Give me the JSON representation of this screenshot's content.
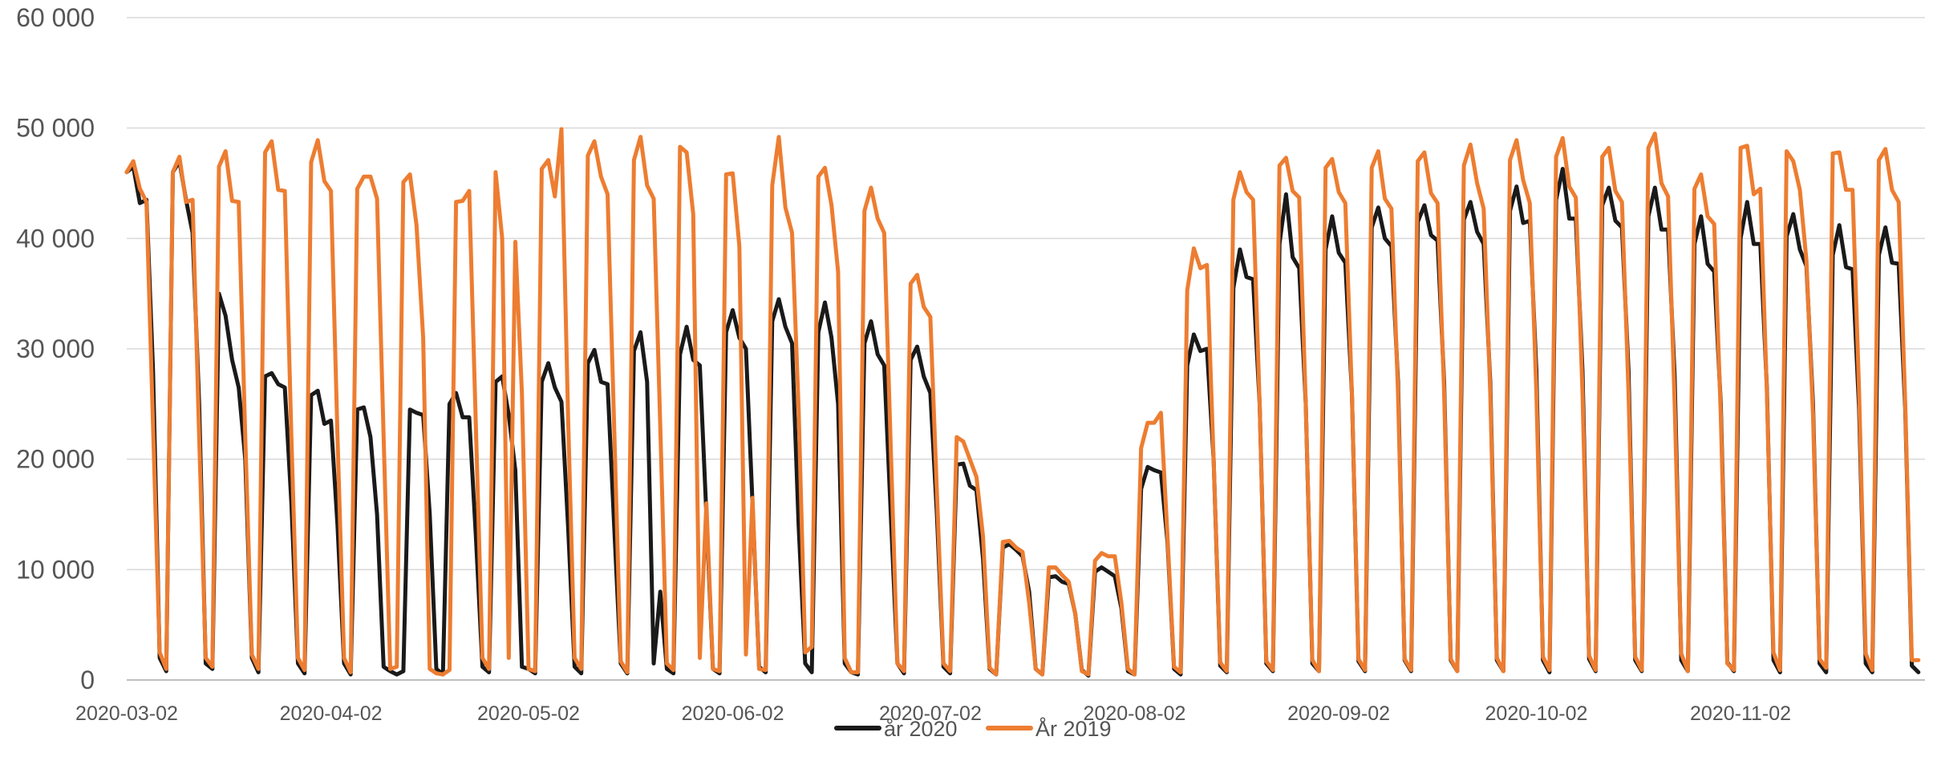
{
  "chart_data": {
    "type": "line",
    "title": "",
    "xlabel": "",
    "ylabel": "",
    "x_range": [
      "2020-03-02",
      "2020-11-30"
    ],
    "ylim": [
      0,
      60000
    ],
    "y_ticks": [
      "0",
      "10 000",
      "20 000",
      "30 000",
      "40 000",
      "50 000",
      "60 000"
    ],
    "x_ticks": [
      "2020-03-02",
      "2020-04-02",
      "2020-05-02",
      "2020-06-02",
      "2020-07-02",
      "2020-08-02",
      "2020-09-02",
      "2020-10-02",
      "2020-11-02"
    ],
    "grid": "horizontal",
    "legend_position": "bottom",
    "series": [
      {
        "name": "år 2020",
        "color": "#1a1a1a",
        "values": [
          46000,
          46500,
          43200,
          43500,
          28000,
          2000,
          800,
          46000,
          47000,
          43500,
          40500,
          25000,
          1500,
          1000,
          35000,
          33000,
          29000,
          26500,
          20000,
          2000,
          700,
          27500,
          27800,
          26800,
          26500,
          16000,
          1500,
          600,
          25800,
          26200,
          23200,
          23500,
          14000,
          1500,
          500,
          24500,
          24700,
          22000,
          15000,
          1200,
          800,
          500,
          800,
          24500,
          24200,
          24000,
          15000,
          1000,
          500,
          25000,
          26000,
          23800,
          23800,
          13000,
          1200,
          700,
          27000,
          27500,
          24000,
          19000,
          1200,
          1000,
          600,
          27000,
          28700,
          26500,
          25200,
          14000,
          1200,
          600,
          28700,
          29900,
          27000,
          26800,
          14000,
          1500,
          600,
          29800,
          31500,
          27000,
          1500,
          8000,
          1000,
          600,
          29500,
          32000,
          29000,
          28500,
          15000,
          1000,
          600,
          31500,
          33500,
          31000,
          30000,
          16000,
          1200,
          700,
          32500,
          34500,
          32000,
          30500,
          14000,
          1500,
          700,
          31500,
          34200,
          31000,
          25000,
          1500,
          700,
          500,
          30500,
          32500,
          29500,
          28500,
          15000,
          1500,
          600,
          29000,
          30200,
          27500,
          26000,
          15000,
          1200,
          600,
          19500,
          19600,
          17600,
          17200,
          11000,
          1000,
          500,
          12000,
          12300,
          11800,
          11200,
          8000,
          1000,
          500,
          9300,
          9400,
          8900,
          8700,
          6000,
          900,
          400,
          9800,
          10200,
          9800,
          9400,
          6500,
          800,
          500,
          17300,
          19300,
          19000,
          18800,
          12500,
          1000,
          500,
          28500,
          31300,
          29800,
          30000,
          20000,
          1300,
          700,
          35500,
          39000,
          36500,
          36300,
          25000,
          1500,
          800,
          39500,
          44000,
          38300,
          37300,
          25000,
          1500,
          800,
          39000,
          42000,
          38700,
          37800,
          26000,
          1700,
          800,
          41000,
          42800,
          40000,
          39300,
          27000,
          1800,
          800,
          41500,
          43000,
          40300,
          39800,
          27000,
          1800,
          800,
          41700,
          43300,
          40600,
          39500,
          27000,
          1800,
          800,
          42500,
          44700,
          41400,
          41600,
          28000,
          1800,
          700,
          43500,
          46300,
          41800,
          41800,
          28000,
          1900,
          800,
          43000,
          44600,
          41600,
          41000,
          28000,
          1800,
          800,
          42000,
          44600,
          40800,
          40800,
          27500,
          1800,
          800,
          39500,
          42000,
          37700,
          37000,
          25000,
          1600,
          800,
          40000,
          43300,
          39500,
          39500,
          26500,
          1800,
          700,
          40200,
          42200,
          39000,
          37500,
          25000,
          1500,
          700,
          38500,
          41200,
          37400,
          37200,
          24500,
          1500,
          700,
          38500,
          41000,
          37800,
          37700,
          24500,
          1300,
          700
        ]
      },
      {
        "name": "År 2019",
        "color": "#ed7d31",
        "values": [
          46000,
          47000,
          44500,
          43300,
          23000,
          2500,
          1000,
          46000,
          47400,
          43300,
          43500,
          22000,
          2000,
          1200,
          46500,
          47900,
          43400,
          43300,
          22000,
          2300,
          1000,
          47800,
          48800,
          44400,
          44300,
          22000,
          2000,
          900,
          46900,
          48900,
          45200,
          44300,
          22000,
          2000,
          700,
          44500,
          45600,
          45600,
          43600,
          22000,
          1000,
          1200,
          45100,
          45800,
          41200,
          31000,
          1000,
          600,
          500,
          900,
          43300,
          43400,
          44300,
          23000,
          2000,
          1000,
          46000,
          40000,
          2000,
          39700,
          26000,
          1000,
          800,
          46300,
          47100,
          43800,
          49900,
          24000,
          2000,
          1000,
          47500,
          48800,
          45600,
          44000,
          23000,
          1700,
          700,
          47100,
          49200,
          44800,
          43600,
          23000,
          1500,
          900,
          48300,
          47800,
          42200,
          2000,
          16000,
          1000,
          800,
          45800,
          45900,
          39300,
          2300,
          16500,
          1000,
          900,
          44800,
          49200,
          42800,
          40500,
          24500,
          2500,
          3000,
          45600,
          46400,
          43000,
          37000,
          2000,
          700,
          700,
          42500,
          44600,
          41800,
          40500,
          21000,
          1500,
          800,
          35900,
          36700,
          33800,
          32900,
          17000,
          1500,
          800,
          22000,
          21600,
          20000,
          18400,
          13000,
          1100,
          500,
          12500,
          12600,
          12000,
          11600,
          7000,
          1000,
          500,
          10200,
          10200,
          9500,
          8900,
          6000,
          800,
          500,
          10800,
          11500,
          11200,
          11200,
          7000,
          1000,
          500,
          21000,
          23300,
          23300,
          24200,
          13000,
          1200,
          700,
          35300,
          39100,
          37300,
          37600,
          20000,
          1600,
          800,
          43500,
          46000,
          44200,
          43500,
          25000,
          1700,
          900,
          46600,
          47300,
          44300,
          43700,
          25000,
          1800,
          800,
          46400,
          47200,
          44200,
          43200,
          26000,
          1900,
          900,
          46400,
          47900,
          43600,
          42700,
          26000,
          1900,
          900,
          47000,
          47800,
          44100,
          43200,
          26000,
          1900,
          800,
          46600,
          48500,
          45000,
          42700,
          26000,
          2000,
          800,
          47100,
          48900,
          45300,
          43200,
          26000,
          2100,
          900,
          47400,
          49100,
          44700,
          43700,
          26000,
          2200,
          900,
          47400,
          48200,
          44300,
          43300,
          26000,
          2100,
          900,
          48200,
          49500,
          45000,
          43800,
          25000,
          2400,
          800,
          44500,
          45800,
          42000,
          41300,
          24000,
          1500,
          900,
          48200,
          48400,
          44000,
          44500,
          26000,
          2500,
          900,
          47900,
          47000,
          44400,
          38000,
          24000,
          1900,
          1100,
          47700,
          47800,
          44400,
          44400,
          26000,
          2400,
          900,
          47100,
          48100,
          44400,
          43300,
          25000,
          1800,
          1800
        ]
      }
    ]
  }
}
